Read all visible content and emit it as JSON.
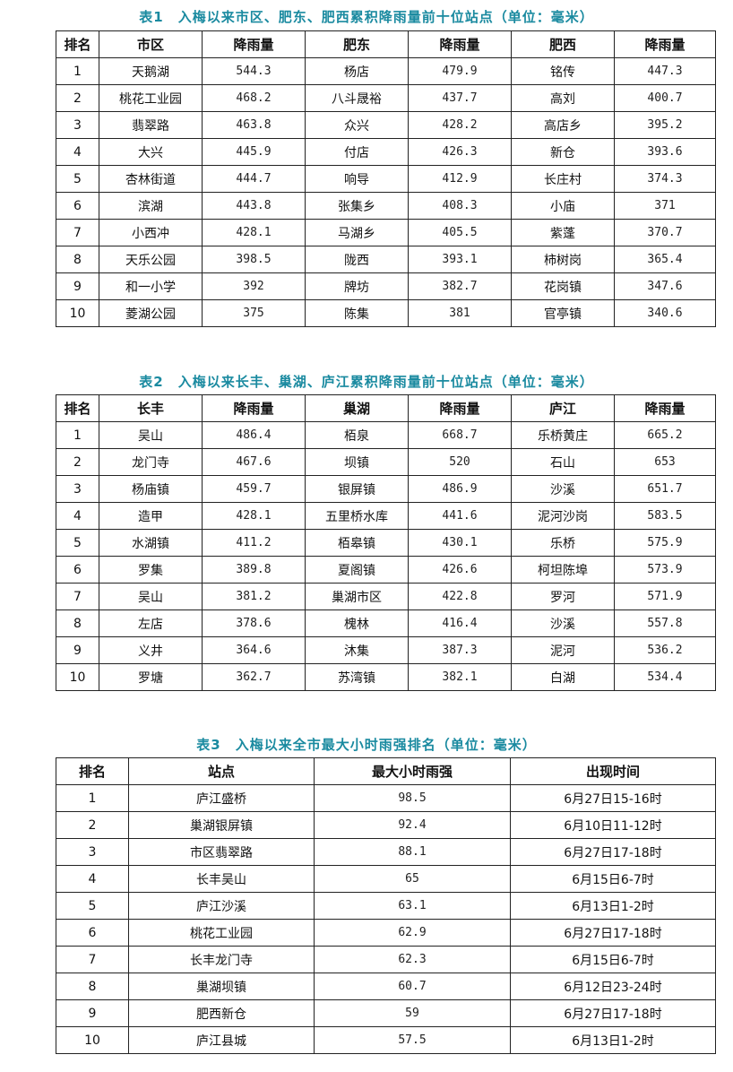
{
  "colors": {
    "title": "#1a8aa0",
    "border": "#222222"
  },
  "table1": {
    "title": "表1　入梅以来市区、肥东、肥西累积降雨量前十位站点（单位：毫米）",
    "headers": [
      "排名",
      "市区",
      "降雨量",
      "肥东",
      "降雨量",
      "肥西",
      "降雨量"
    ],
    "rows": [
      [
        "1",
        "天鹅湖",
        "544.3",
        "杨店",
        "479.9",
        "铭传",
        "447.3"
      ],
      [
        "2",
        "桃花工业园",
        "468.2",
        "八斗晟裕",
        "437.7",
        "高刘",
        "400.7"
      ],
      [
        "3",
        "翡翠路",
        "463.8",
        "众兴",
        "428.2",
        "高店乡",
        "395.2"
      ],
      [
        "4",
        "大兴",
        "445.9",
        "付店",
        "426.3",
        "新仓",
        "393.6"
      ],
      [
        "5",
        "杏林街道",
        "444.7",
        "响导",
        "412.9",
        "长庄村",
        "374.3"
      ],
      [
        "6",
        "滨湖",
        "443.8",
        "张集乡",
        "408.3",
        "小庙",
        "371"
      ],
      [
        "7",
        "小西冲",
        "428.1",
        "马湖乡",
        "405.5",
        "紫蓬",
        "370.7"
      ],
      [
        "8",
        "天乐公园",
        "398.5",
        "陇西",
        "393.1",
        "柿树岗",
        "365.4"
      ],
      [
        "9",
        "和一小学",
        "392",
        "牌坊",
        "382.7",
        "花岗镇",
        "347.6"
      ],
      [
        "10",
        "菱湖公园",
        "375",
        "陈集",
        "381",
        "官亭镇",
        "340.6"
      ]
    ]
  },
  "table2": {
    "title": "表2　入梅以来长丰、巢湖、庐江累积降雨量前十位站点（单位：毫米）",
    "headers": [
      "排名",
      "长丰",
      "降雨量",
      "巢湖",
      "降雨量",
      "庐江",
      "降雨量"
    ],
    "rows": [
      [
        "1",
        "吴山",
        "486.4",
        "栢泉",
        "668.7",
        "乐桥黄庄",
        "665.2"
      ],
      [
        "2",
        "龙门寺",
        "467.6",
        "坝镇",
        "520",
        "石山",
        "653"
      ],
      [
        "3",
        "杨庙镇",
        "459.7",
        "银屏镇",
        "486.9",
        "沙溪",
        "651.7"
      ],
      [
        "4",
        "造甲",
        "428.1",
        "五里桥水库",
        "441.6",
        "泥河沙岗",
        "583.5"
      ],
      [
        "5",
        "水湖镇",
        "411.2",
        "栢皋镇",
        "430.1",
        "乐桥",
        "575.9"
      ],
      [
        "6",
        "罗集",
        "389.8",
        "夏阁镇",
        "426.6",
        "柯坦陈埠",
        "573.9"
      ],
      [
        "7",
        "吴山",
        "381.2",
        "巢湖市区",
        "422.8",
        "罗河",
        "571.9"
      ],
      [
        "8",
        "左店",
        "378.6",
        "槐林",
        "416.4",
        "沙溪",
        "557.8"
      ],
      [
        "9",
        "义井",
        "364.6",
        "沐集",
        "387.3",
        "泥河",
        "536.2"
      ],
      [
        "10",
        "罗塘",
        "362.7",
        "苏湾镇",
        "382.1",
        "白湖",
        "534.4"
      ]
    ]
  },
  "table3": {
    "title": "表3　入梅以来全市最大小时雨强排名（单位：毫米）",
    "headers": [
      "排名",
      "站点",
      "最大小时雨强",
      "出现时间"
    ],
    "rows": [
      [
        "1",
        "庐江盛桥",
        "98.5",
        "6月27日15-16时"
      ],
      [
        "2",
        "巢湖银屏镇",
        "92.4",
        "6月10日11-12时"
      ],
      [
        "3",
        "市区翡翠路",
        "88.1",
        "6月27日17-18时"
      ],
      [
        "4",
        "长丰吴山",
        "65",
        "6月15日6-7时"
      ],
      [
        "5",
        "庐江沙溪",
        "63.1",
        "6月13日1-2时"
      ],
      [
        "6",
        "桃花工业园",
        "62.9",
        "6月27日17-18时"
      ],
      [
        "7",
        "长丰龙门寺",
        "62.3",
        "6月15日6-7时"
      ],
      [
        "8",
        "巢湖坝镇",
        "60.7",
        "6月12日23-24时"
      ],
      [
        "9",
        "肥西新仓",
        "59",
        "6月27日17-18时"
      ],
      [
        "10",
        "庐江县城",
        "57.5",
        "6月13日1-2时"
      ]
    ]
  }
}
